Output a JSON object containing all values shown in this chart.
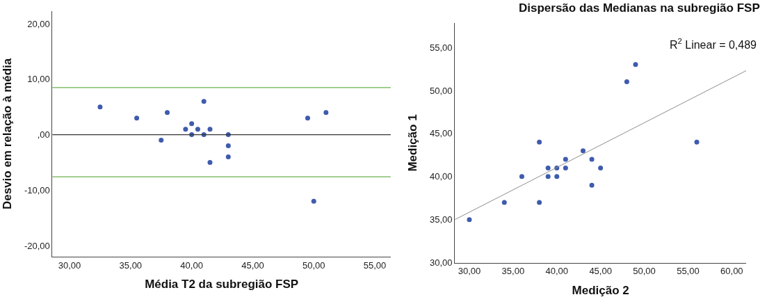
{
  "chart_data": [
    {
      "type": "scatter",
      "xlabel": "Média T2 da subregião FSP",
      "ylabel": "Desvio em relação à média",
      "marker": "circle",
      "xlim": [
        28.6,
        56.3
      ],
      "ylim": [
        -22,
        22.3
      ],
      "xticks": [
        {
          "value": 30,
          "label": "30,00"
        },
        {
          "value": 35,
          "label": "35,00"
        },
        {
          "value": 40,
          "label": "40,00"
        },
        {
          "value": 45,
          "label": "45,00"
        },
        {
          "value": 50,
          "label": "50,00"
        },
        {
          "value": 55,
          "label": "55,00"
        }
      ],
      "yticks": [
        {
          "value": -20,
          "label": "-20,00"
        },
        {
          "value": -10,
          "label": "-10,00"
        },
        {
          "value": 0,
          "label": ",00"
        },
        {
          "value": 10,
          "label": "10,00"
        },
        {
          "value": 20,
          "label": "20,00"
        }
      ],
      "series": [
        {
          "color": "#3f5bad",
          "x": [
            32.5,
            35.5,
            38,
            37.5,
            39.5,
            40,
            40,
            40.5,
            41,
            41,
            41.5,
            41.5,
            43,
            43,
            43,
            49.5,
            50,
            51
          ],
          "values": [
            5,
            3,
            4,
            -1,
            1,
            2,
            0,
            1,
            6,
            0,
            1,
            -5,
            0,
            -2,
            -4,
            3,
            -12,
            4
          ]
        }
      ],
      "ref_lines": [
        {
          "axis": "y",
          "value": 8.5,
          "color": "#6ab04c",
          "line_style": "solid"
        },
        {
          "axis": "y",
          "value": 0,
          "color": "#333333",
          "line_style": "solid"
        },
        {
          "axis": "y",
          "value": -7.6,
          "color": "#6ab04c",
          "line_style": "solid"
        }
      ]
    },
    {
      "type": "scatter",
      "title": "Dispersão das Medianas na subregião FSP",
      "xlabel": "Medição 2",
      "ylabel": "Medição 1",
      "marker": "circle",
      "xlim": [
        28.35,
        61.65
      ],
      "ylim": [
        30,
        57.8
      ],
      "xticks": [
        {
          "value": 30,
          "label": "30,00"
        },
        {
          "value": 35,
          "label": "35,00"
        },
        {
          "value": 40,
          "label": "40,00"
        },
        {
          "value": 45,
          "label": "45,00"
        },
        {
          "value": 50,
          "label": "50,00"
        },
        {
          "value": 55,
          "label": "55,00"
        },
        {
          "value": 60,
          "label": "60,00"
        }
      ],
      "yticks": [
        {
          "value": 30,
          "label": "30,00"
        },
        {
          "value": 35,
          "label": "35,00"
        },
        {
          "value": 40,
          "label": "40,00"
        },
        {
          "value": 45,
          "label": "45,00"
        },
        {
          "value": 50,
          "label": "50,00"
        },
        {
          "value": 55,
          "label": "55,00"
        }
      ],
      "series": [
        {
          "color": "#3f5bad",
          "x": [
            30,
            34,
            36,
            38,
            38,
            39,
            39,
            40,
            40,
            41,
            41,
            43,
            44,
            44,
            45,
            48,
            49,
            56
          ],
          "values": [
            35,
            37,
            40,
            44,
            37,
            41,
            40,
            41,
            40,
            42,
            41,
            43,
            42,
            39,
            41,
            51,
            53,
            44
          ]
        },
        {
          "type": "line",
          "color": "#8a8f8a",
          "marker": "none",
          "x": [
            28.35,
            61.65
          ],
          "values": [
            35.0,
            52.3
          ]
        }
      ],
      "annotations": [
        "R$^{2}$ Linear = 0,489"
      ]
    }
  ]
}
